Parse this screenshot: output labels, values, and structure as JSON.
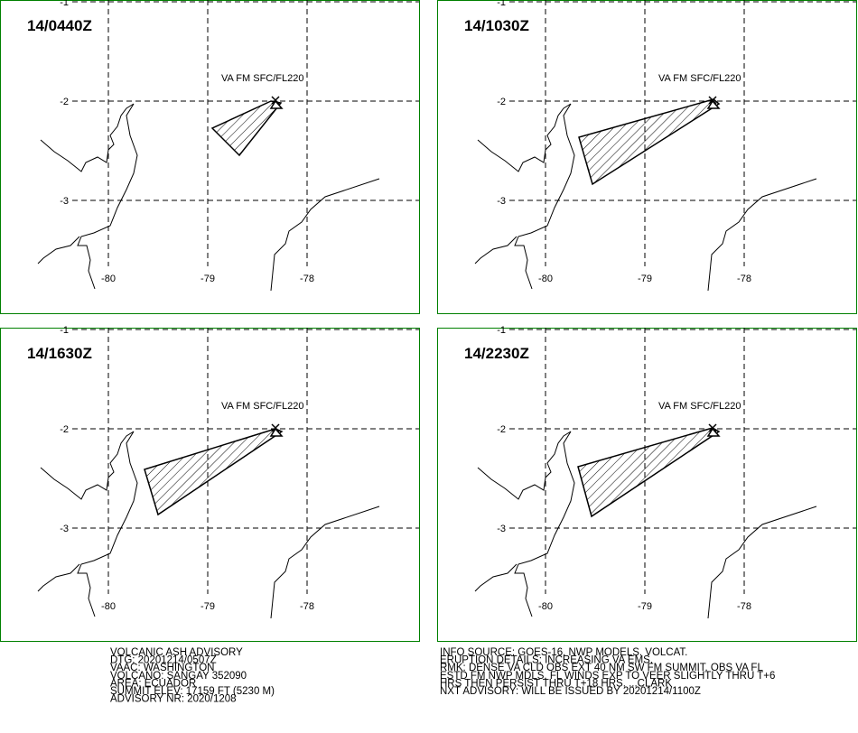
{
  "panels": [
    {
      "time": "14/0440Z",
      "label": "VA FM SFC/FL220"
    },
    {
      "time": "14/1030Z",
      "label": "VA FM SFC/FL220"
    },
    {
      "time": "14/1630Z",
      "label": "VA FM SFC/FL220"
    },
    {
      "time": "14/2230Z",
      "label": "VA FM SFC/FL220"
    }
  ],
  "grid": {
    "lat_labels": [
      "-1",
      "-2",
      "-3"
    ],
    "lon_labels": [
      "-80",
      "-79",
      "-78"
    ]
  },
  "advisory": {
    "left": [
      "VOLCANIC ASH ADVISORY",
      "DTG: 20201214/0507Z",
      "VAAC: WASHINGTON",
      "VOLCANO: SANGAY 352090",
      "AREA: ECUADOR",
      "SUMMIT ELEV: 17159 FT (5230 M)",
      "ADVISORY NR: 2020/1208"
    ],
    "right": [
      "INFO SOURCE: GOES-16. NWP MODELS. VOLCAT.",
      "ERUPTION DETAILS: INCREASING VA EMS.",
      "RMK: DENSE VA CLD OBS EXT 40 NM SW FM SUMMIT. OBS VA FL",
      "ESTD FM NWP MDLS. FL WINDS EXP TO VEER SLIGHTLY THRU T+6",
      "HRS THEN PERSIST THRU T+18 HRS. ...CLARK",
      "NXT ADVISORY: WILL BE ISSUED BY 20201214/1100Z"
    ]
  }
}
